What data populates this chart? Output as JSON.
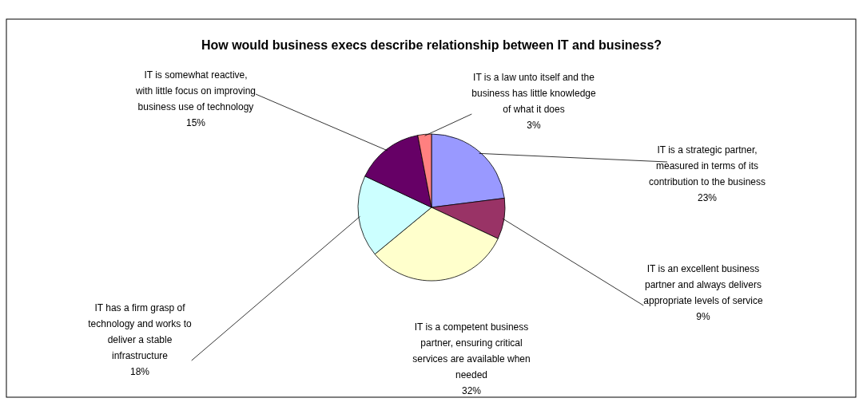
{
  "chart_data": {
    "type": "pie",
    "title": "How would business execs describe relationship between IT and business?",
    "categories": [
      "IT is a strategic partner, measured in terms of its contribution to the business",
      "IT is an excellent business partner and always delivers appropriate levels of service",
      "IT is a competent business partner, ensuring critical services are available when needed",
      "IT has a firm grasp of technology and works to deliver a stable infrastructure",
      "IT is somewhat reactive, with little focus on improving business use of technology",
      "IT is a law unto itself and the business has little knowledge of what it does"
    ],
    "values": [
      23,
      9,
      32,
      18,
      15,
      3
    ],
    "value_labels": [
      "23%",
      "9%",
      "32%",
      "18%",
      "15%",
      "3%"
    ],
    "colors": [
      "#9999ff",
      "#993366",
      "#ffffcc",
      "#ccffff",
      "#660066",
      "#ff8080"
    ]
  }
}
